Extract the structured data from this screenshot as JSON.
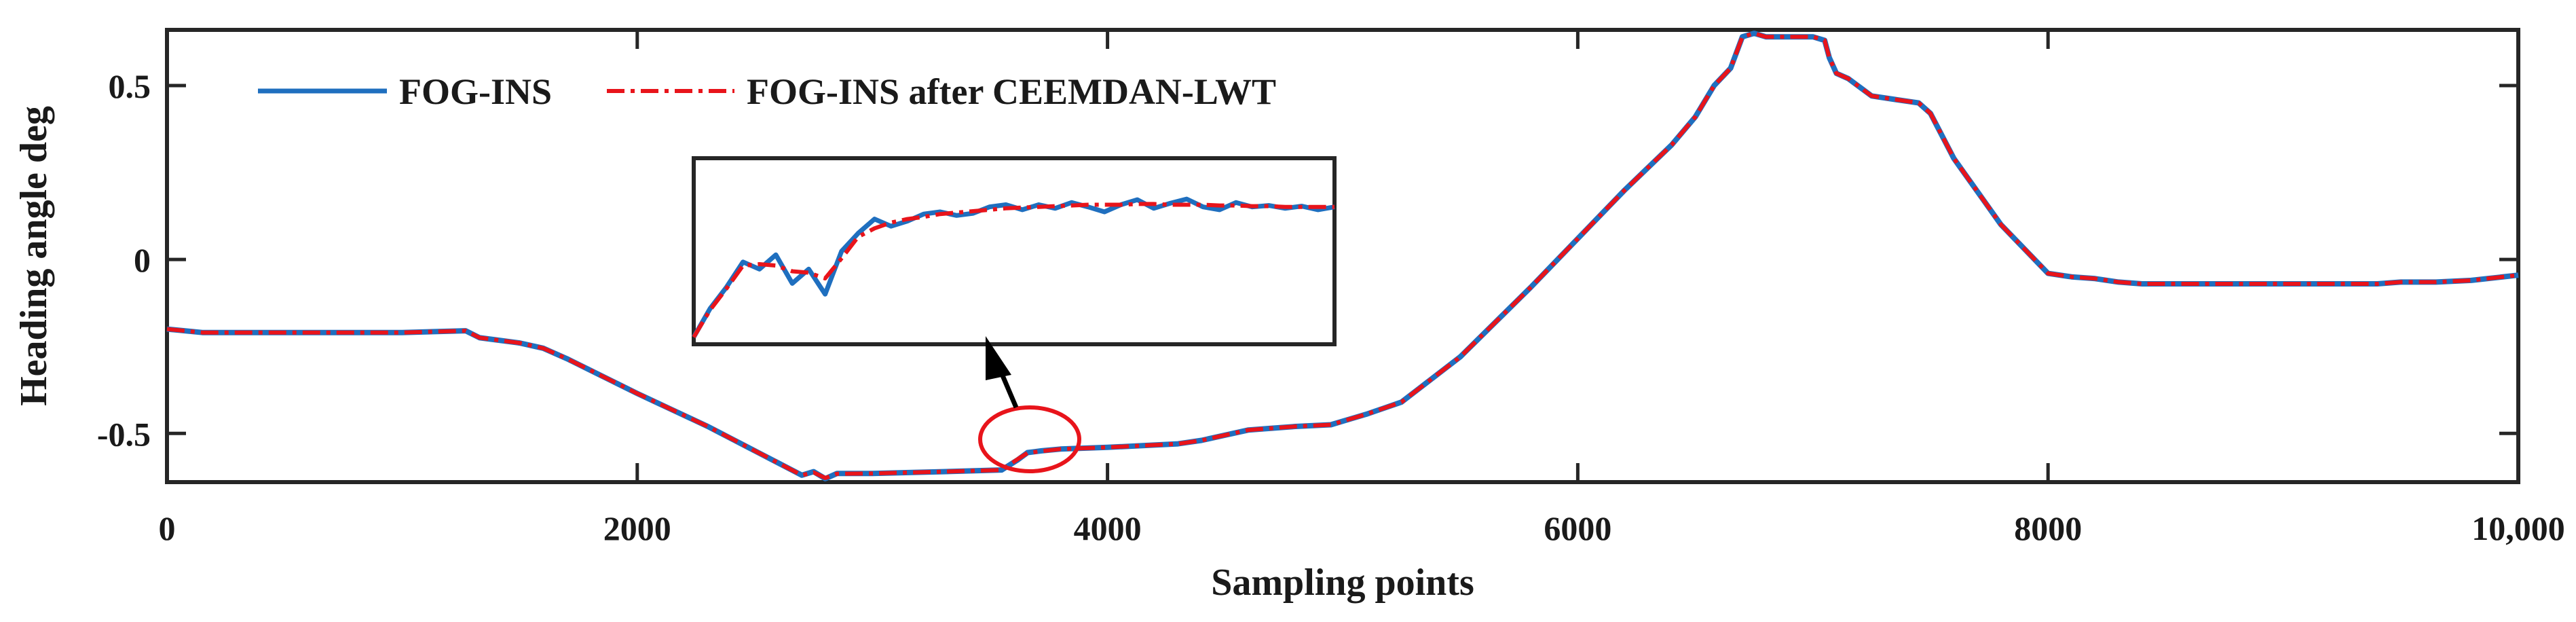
{
  "chart_data": {
    "type": "line",
    "title": "",
    "xlabel": "Sampling points",
    "ylabel": "Heading angle deg",
    "xlim": [
      0,
      10000
    ],
    "ylim": [
      -0.64,
      0.66
    ],
    "x_ticks": [
      0,
      2000,
      4000,
      6000,
      8000,
      10000
    ],
    "x_tick_labels": [
      "0",
      "2000",
      "4000",
      "6000",
      "8000",
      "10,000"
    ],
    "y_ticks": [
      -0.5,
      0,
      0.5
    ],
    "y_tick_labels": [
      "-0.5",
      "0",
      "0.5"
    ],
    "grid": false,
    "legend_position": "top-left",
    "series": [
      {
        "name": "FOG-INS",
        "color": "#1f6fbf",
        "style": "solid",
        "x": [
          0,
          150,
          1000,
          1270,
          1330,
          1500,
          1600,
          1700,
          2000,
          2300,
          2600,
          2700,
          2750,
          2800,
          2850,
          3000,
          3300,
          3550,
          3620,
          3660,
          3720,
          3800,
          4000,
          4300,
          4400,
          4500,
          4600,
          4700,
          4800,
          4950,
          5000,
          5100,
          5250,
          5500,
          5800,
          6000,
          6200,
          6400,
          6500,
          6580,
          6650,
          6700,
          6750,
          6800,
          6900,
          7000,
          7050,
          7070,
          7100,
          7150,
          7250,
          7350,
          7450,
          7500,
          7600,
          7800,
          8000,
          8100,
          8200,
          8300,
          8400,
          8600,
          9000,
          9400,
          9500,
          9650,
          9800,
          10000
        ],
        "y": [
          -0.2,
          -0.21,
          -0.21,
          -0.205,
          -0.225,
          -0.24,
          -0.255,
          -0.285,
          -0.385,
          -0.48,
          -0.585,
          -0.62,
          -0.61,
          -0.63,
          -0.615,
          -0.615,
          -0.61,
          -0.605,
          -0.575,
          -0.555,
          -0.55,
          -0.545,
          -0.54,
          -0.53,
          -0.52,
          -0.505,
          -0.49,
          -0.485,
          -0.48,
          -0.475,
          -0.465,
          -0.445,
          -0.41,
          -0.28,
          -0.08,
          0.06,
          0.2,
          0.33,
          0.41,
          0.5,
          0.55,
          0.64,
          0.65,
          0.64,
          0.64,
          0.64,
          0.63,
          0.58,
          0.535,
          0.52,
          0.47,
          0.46,
          0.45,
          0.42,
          0.29,
          0.1,
          -0.04,
          -0.05,
          -0.055,
          -0.065,
          -0.07,
          -0.07,
          -0.07,
          -0.07,
          -0.065,
          -0.065,
          -0.06,
          -0.045
        ]
      },
      {
        "name": "FOG-INS after CEEMDAN-LWT",
        "color": "#e8141b",
        "style": "dashdot",
        "x": [
          0,
          150,
          1000,
          1270,
          1330,
          1500,
          1600,
          1700,
          2000,
          2300,
          2600,
          2700,
          2750,
          2800,
          2850,
          3000,
          3300,
          3550,
          3620,
          3660,
          3720,
          3800,
          4000,
          4300,
          4400,
          4500,
          4600,
          4700,
          4800,
          4950,
          5000,
          5100,
          5250,
          5500,
          5800,
          6000,
          6200,
          6400,
          6500,
          6580,
          6650,
          6700,
          6750,
          6800,
          6900,
          7000,
          7050,
          7070,
          7100,
          7150,
          7250,
          7350,
          7450,
          7500,
          7600,
          7800,
          8000,
          8100,
          8200,
          8300,
          8400,
          8600,
          9000,
          9400,
          9500,
          9650,
          9800,
          10000
        ],
        "y": [
          -0.2,
          -0.21,
          -0.21,
          -0.205,
          -0.225,
          -0.24,
          -0.255,
          -0.285,
          -0.385,
          -0.48,
          -0.585,
          -0.62,
          -0.612,
          -0.628,
          -0.616,
          -0.615,
          -0.61,
          -0.605,
          -0.573,
          -0.556,
          -0.551,
          -0.545,
          -0.54,
          -0.53,
          -0.52,
          -0.505,
          -0.49,
          -0.485,
          -0.48,
          -0.475,
          -0.465,
          -0.445,
          -0.41,
          -0.28,
          -0.08,
          0.06,
          0.2,
          0.33,
          0.41,
          0.5,
          0.55,
          0.64,
          0.65,
          0.64,
          0.64,
          0.64,
          0.63,
          0.58,
          0.535,
          0.52,
          0.47,
          0.46,
          0.45,
          0.42,
          0.29,
          0.1,
          -0.04,
          -0.05,
          -0.055,
          -0.065,
          -0.07,
          -0.07,
          -0.07,
          -0.07,
          -0.065,
          -0.065,
          -0.06,
          -0.045
        ]
      }
    ],
    "inset": {
      "description_series": "zoomed region around x≈3550–3800",
      "fog_ins": [
        -0.9,
        -0.5,
        -0.2,
        0.15,
        0.05,
        0.25,
        -0.15,
        0.05,
        -0.3,
        0.3,
        0.55,
        0.75,
        0.65,
        0.72,
        0.82,
        0.85,
        0.8,
        0.83,
        0.92,
        0.95,
        0.88,
        0.95,
        0.9,
        0.98,
        0.92,
        0.85,
        0.95,
        1.02,
        0.9,
        0.97,
        1.03,
        0.92,
        0.88,
        0.98,
        0.92,
        0.94,
        0.9,
        0.93,
        0.88,
        0.92
      ],
      "fog_ins_denoised": [
        -0.9,
        -0.52,
        -0.22,
        0.1,
        0.12,
        0.1,
        0.02,
        0.0,
        -0.08,
        0.2,
        0.5,
        0.62,
        0.7,
        0.75,
        0.78,
        0.82,
        0.84,
        0.86,
        0.88,
        0.9,
        0.91,
        0.92,
        0.93,
        0.94,
        0.95,
        0.95,
        0.95,
        0.96,
        0.96,
        0.95,
        0.95,
        0.95,
        0.94,
        0.94,
        0.93,
        0.93,
        0.92,
        0.92,
        0.92,
        0.92
      ]
    },
    "annotations": [
      "circle highlights jump near x≈3600",
      "arrow points from circle to zoomed inset"
    ]
  }
}
